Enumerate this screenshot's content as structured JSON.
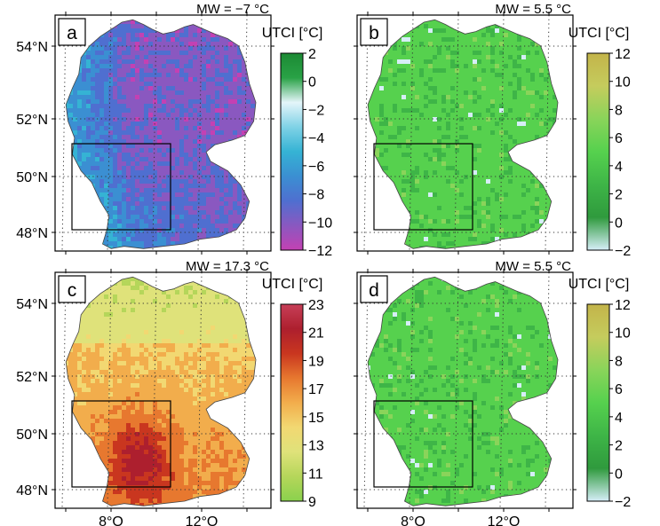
{
  "chart_data": [
    {
      "type": "heatmap",
      "panel_label": "a",
      "title": "MW = −7 °C",
      "colorbar_label": "UTCI [°C]",
      "colorbar_ticks": [
        "2",
        "0",
        "−2",
        "−4",
        "−6",
        "−8",
        "−10",
        "−12"
      ],
      "colorbar_range": [
        -12,
        2
      ],
      "colors": [
        "#c341b3",
        "#8a58c0",
        "#4f6fd0",
        "#3b8fd2",
        "#35b3d4",
        "#7fd2e6",
        "#e4f5fa",
        "#29a246",
        "#1c8a34"
      ],
      "ylabels": [
        "54°N",
        "52°N",
        "50°N",
        "48°N"
      ],
      "xlabels": []
    },
    {
      "type": "heatmap",
      "panel_label": "b",
      "title": "MW = 5.5 °C",
      "colorbar_label": "UTCI [°C]",
      "colorbar_ticks": [
        "12",
        "10",
        "8",
        "6",
        "4",
        "2",
        "0",
        "−2"
      ],
      "colorbar_range": [
        -2,
        12
      ],
      "colors": [
        "#d6eef8",
        "#2f9a3d",
        "#3eb547",
        "#56d14e",
        "#8ad45a",
        "#c5cc5d",
        "#c3b44a"
      ],
      "ylabels": [],
      "xlabels": []
    },
    {
      "type": "heatmap",
      "panel_label": "c",
      "title": "MW = 17.3 °C",
      "colorbar_label": "UTCI [°C]",
      "colorbar_ticks": [
        "23",
        "21",
        "19",
        "17",
        "15",
        "13",
        "11",
        "9"
      ],
      "colorbar_range": [
        9,
        23
      ],
      "colors": [
        "#8ad14d",
        "#b5d65a",
        "#dfe27a",
        "#f2d872",
        "#f2ad4c",
        "#e7782f",
        "#c9361f",
        "#ad1f2e",
        "#c73f58"
      ],
      "ylabels": [
        "54°N",
        "52°N",
        "50°N",
        "48°N"
      ],
      "xlabels": [
        "8°O",
        "12°O"
      ]
    },
    {
      "type": "heatmap",
      "panel_label": "d",
      "title": "MW = 5.5 °C",
      "colorbar_label": "UTCI [°C]",
      "colorbar_ticks": [
        "12",
        "10",
        "8",
        "6",
        "4",
        "2",
        "0",
        "−2"
      ],
      "colorbar_range": [
        -2,
        12
      ],
      "colors": [
        "#d6eef8",
        "#2f9a3d",
        "#3eb547",
        "#56d14e",
        "#8ad45a",
        "#c5cc5d",
        "#c3b44a"
      ],
      "ylabels": [],
      "xlabels": [
        "8°O",
        "12°O"
      ]
    }
  ]
}
